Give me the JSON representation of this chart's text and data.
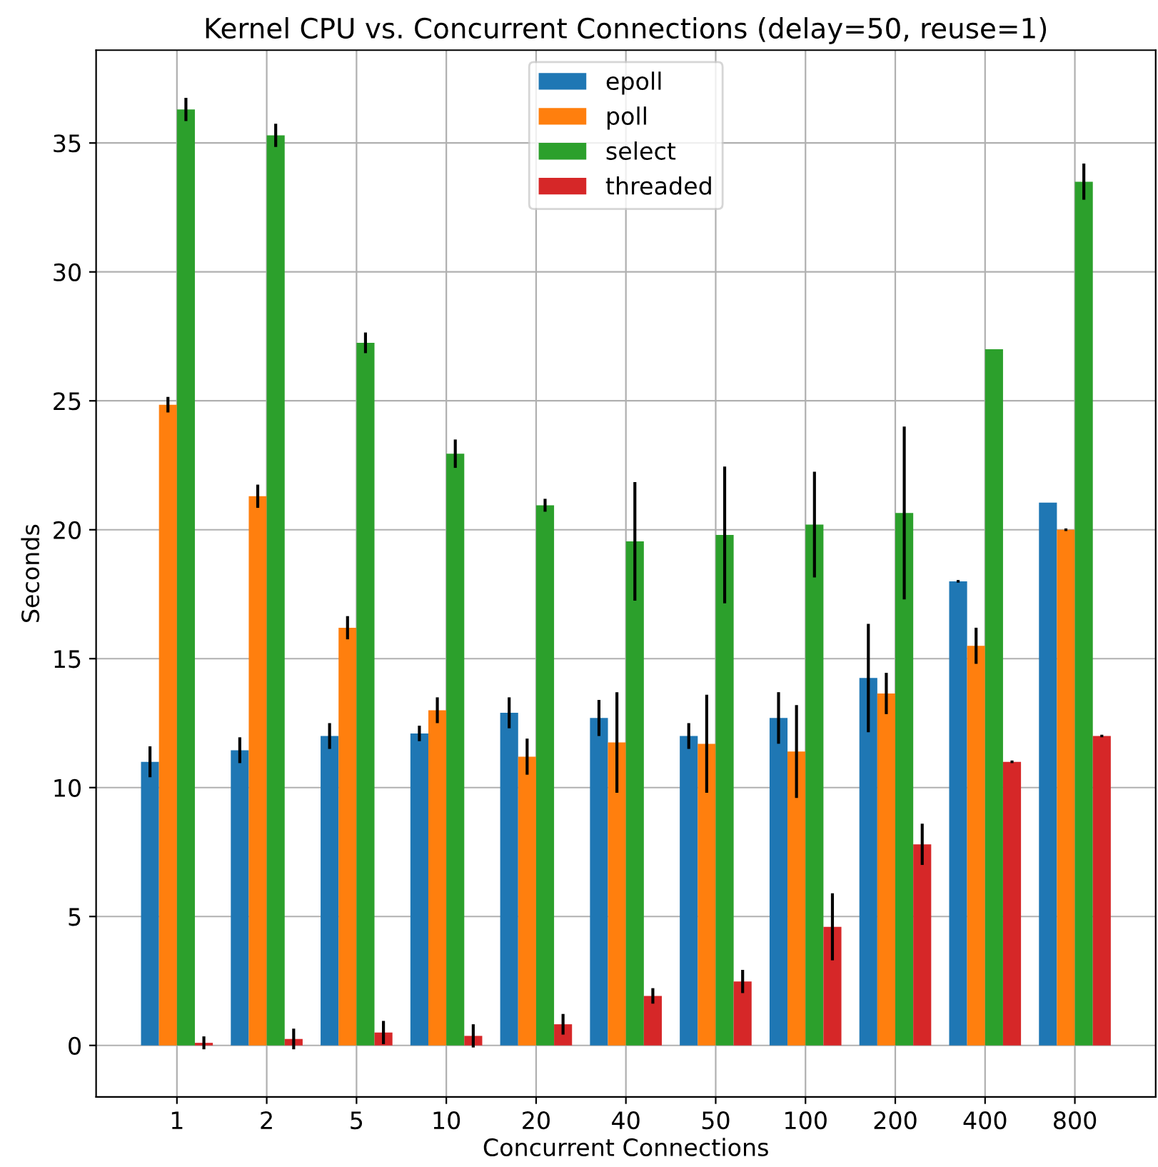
{
  "chart_data": {
    "type": "bar",
    "title": "Kernel CPU vs. Concurrent Connections (delay=50, reuse=1)",
    "xlabel": "Concurrent Connections",
    "ylabel": "Seconds",
    "categories": [
      "1",
      "2",
      "5",
      "10",
      "20",
      "40",
      "50",
      "100",
      "200",
      "400",
      "800"
    ],
    "series": [
      {
        "name": "epoll",
        "color": "#1f77b4",
        "values": [
          11.0,
          11.45,
          12.0,
          12.1,
          12.9,
          12.7,
          12.0,
          12.7,
          14.25,
          18.0,
          21.05
        ],
        "errors": [
          0.6,
          0.5,
          0.5,
          0.3,
          0.6,
          0.7,
          0.5,
          1.0,
          2.1,
          0.05,
          0
        ]
      },
      {
        "name": "poll",
        "color": "#ff7f0e",
        "values": [
          24.85,
          21.3,
          16.2,
          13.0,
          11.2,
          11.75,
          11.7,
          11.4,
          13.65,
          15.5,
          20.0
        ],
        "errors": [
          0.3,
          0.45,
          0.45,
          0.5,
          0.7,
          1.95,
          1.9,
          1.8,
          0.8,
          0.7,
          0.05
        ]
      },
      {
        "name": "select",
        "color": "#2ca02c",
        "values": [
          36.3,
          35.3,
          27.25,
          22.95,
          20.95,
          19.55,
          19.8,
          20.2,
          20.65,
          27.0,
          33.5
        ],
        "errors": [
          0.45,
          0.45,
          0.4,
          0.55,
          0.25,
          2.3,
          2.65,
          2.05,
          3.35,
          0,
          0.7
        ]
      },
      {
        "name": "threaded",
        "color": "#d62728",
        "values": [
          0.1,
          0.25,
          0.5,
          0.37,
          0.82,
          1.92,
          2.48,
          4.6,
          7.8,
          11.0,
          12.0
        ],
        "errors": [
          0.25,
          0.4,
          0.45,
          0.45,
          0.4,
          0.3,
          0.45,
          1.3,
          0.8,
          0.05,
          0.05
        ]
      }
    ],
    "ylim": [
      -2.0,
      38.6
    ],
    "yticks": [
      0,
      5,
      10,
      15,
      20,
      25,
      30,
      35
    ],
    "grid": true,
    "legend": "top"
  }
}
